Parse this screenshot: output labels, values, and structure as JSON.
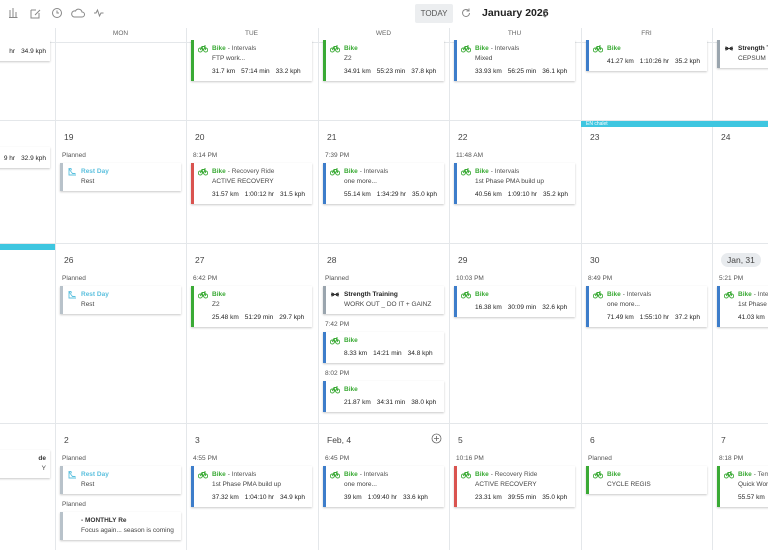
{
  "toolbar": {
    "today": "TODAY",
    "month": "January 2026"
  },
  "weekdays": [
    "MON",
    "TUE",
    "WED",
    "THU",
    "FRI"
  ],
  "banner": "EN chalet",
  "weeks": [
    {
      "days": [
        {
          "items": [
            {
              "card": {
                "stats": [
                  "hr",
                  "34.9 kph"
                ],
                "color": "#9aa5ae"
              }
            }
          ]
        },
        {
          "items": []
        },
        {
          "items": [
            {
              "card": {
                "icon": "bike",
                "title": "Bike",
                "title_color": "#3aaa35",
                "suffix": "- Intervals",
                "desc": "FTP work...",
                "stats": [
                  "31.7 km",
                  "57:14 min",
                  "33.2 kph"
                ],
                "color": "#3aaa35"
              }
            }
          ]
        },
        {
          "items": [
            {
              "card": {
                "icon": "bike",
                "title": "Bike",
                "title_color": "#3aaa35",
                "desc": "Z2",
                "stats": [
                  "34.91 km",
                  "55:23 min",
                  "37.8 kph"
                ],
                "color": "#3aaa35"
              }
            }
          ]
        },
        {
          "items": [
            {
              "card": {
                "icon": "bike",
                "title": "Bike",
                "title_color": "#3aaa35",
                "suffix": "- Intervals",
                "desc": "Mixed",
                "stats": [
                  "33.93 km",
                  "56:25 min",
                  "36.1 kph"
                ],
                "color": "#3d7dca"
              }
            }
          ]
        },
        {
          "items": [
            {
              "card": {
                "icon": "bike",
                "title": "Bike",
                "title_color": "#3aaa35",
                "stats": [
                  "41.27 km",
                  "1:10:26 hr",
                  "35.2 kph"
                ],
                "color": "#3d7dca"
              }
            }
          ]
        },
        {
          "items": [
            {
              "card": {
                "icon": "dumbbell",
                "title": "Strength T",
                "title_color": "#222222",
                "desc": "CEPSUM",
                "color": "#9aa5ae"
              }
            }
          ]
        }
      ]
    },
    {
      "days": [
        {
          "items": [
            {
              "card": {
                "stats": [
                  "9 hr",
                  "32.9 kph"
                ],
                "color": "#9aa5ae"
              }
            }
          ]
        },
        {
          "date": "19",
          "items": [
            {
              "label": "Planned",
              "card": {
                "icon": "rest",
                "title": "Rest Day",
                "title_color": "#5bc0de",
                "desc": "Rest",
                "color": "#b8c2ca"
              }
            }
          ]
        },
        {
          "date": "20",
          "items": [
            {
              "label": "8:14 PM",
              "card": {
                "icon": "bike",
                "title": "Bike",
                "title_color": "#3aaa35",
                "suffix": "- Recovery Ride",
                "desc": "ACTIVE RECOVERY",
                "stats": [
                  "31.57 km",
                  "1:00:12 hr",
                  "31.5 kph"
                ],
                "color": "#d9534f"
              }
            }
          ]
        },
        {
          "date": "21",
          "items": [
            {
              "label": "7:39 PM",
              "card": {
                "icon": "bike",
                "title": "Bike",
                "title_color": "#3aaa35",
                "suffix": "- Intervals",
                "desc": "one more...",
                "stats": [
                  "55.14 km",
                  "1:34:29 hr",
                  "35.0 kph"
                ],
                "color": "#3d7dca"
              }
            }
          ]
        },
        {
          "date": "22",
          "items": [
            {
              "label": "11:48 AM",
              "card": {
                "icon": "bike",
                "title": "Bike",
                "title_color": "#3aaa35",
                "suffix": "- Intervals",
                "desc": "1st Phase PMA build up",
                "stats": [
                  "40.56 km",
                  "1:09:10 hr",
                  "35.2 kph"
                ],
                "color": "#3d7dca"
              }
            }
          ]
        },
        {
          "date": "23",
          "items": []
        },
        {
          "date": "24",
          "items": []
        }
      ]
    },
    {
      "days": [
        {
          "items": []
        },
        {
          "date": "26",
          "items": [
            {
              "label": "Planned",
              "card": {
                "icon": "rest",
                "title": "Rest Day",
                "title_color": "#5bc0de",
                "desc": "Rest",
                "color": "#b8c2ca"
              }
            }
          ]
        },
        {
          "date": "27",
          "items": [
            {
              "label": "6:42 PM",
              "card": {
                "icon": "bike",
                "title": "Bike",
                "title_color": "#3aaa35",
                "desc": "Z2",
                "stats": [
                  "25.48 km",
                  "51:29 min",
                  "29.7 kph"
                ],
                "color": "#3aaa35"
              }
            }
          ]
        },
        {
          "date": "28",
          "items": [
            {
              "label": "Planned",
              "card": {
                "icon": "dumbbell",
                "title": "Strength Training",
                "title_color": "#222222",
                "desc": "WORK OUT _ DO IT + GAINZ",
                "color": "#9aa5ae"
              }
            },
            {
              "label": "7:42 PM",
              "card": {
                "icon": "bike",
                "title": "Bike",
                "title_color": "#3aaa35",
                "stats": [
                  "8.33 km",
                  "14:21 min",
                  "34.8 kph"
                ],
                "color": "#3d7dca"
              }
            },
            {
              "label": "8:02 PM",
              "card": {
                "icon": "bike",
                "title": "Bike",
                "title_color": "#3aaa35",
                "stats": [
                  "21.87 km",
                  "34:31 min",
                  "38.0 kph"
                ],
                "color": "#3d7dca"
              }
            }
          ]
        },
        {
          "date": "29",
          "items": [
            {
              "label": "10:03 PM",
              "card": {
                "icon": "bike",
                "title": "Bike",
                "title_color": "#3aaa35",
                "stats": [
                  "16.38 km",
                  "30:09 min",
                  "32.6 kph"
                ],
                "color": "#3d7dca"
              }
            }
          ]
        },
        {
          "date": "30",
          "items": [
            {
              "label": "8:49 PM",
              "card": {
                "icon": "bike",
                "title": "Bike",
                "title_color": "#3aaa35",
                "suffix": "- Intervals",
                "desc": "one more...",
                "stats": [
                  "71.49 km",
                  "1:55:10 hr",
                  "37.2 kph"
                ],
                "color": "#3d7dca"
              }
            }
          ]
        },
        {
          "date": "Jan, 31",
          "highlight": true,
          "items": [
            {
              "label": "5:21 PM",
              "card": {
                "icon": "bike",
                "title": "Bike",
                "title_color": "#3aaa35",
                "suffix": "- Inter",
                "desc": "1st Phase",
                "stats": [
                  "41.03 km"
                ],
                "color": "#3d7dca"
              }
            }
          ]
        }
      ]
    },
    {
      "days": [
        {
          "items": [
            {
              "card": {
                "title": "de",
                "title_color": "#333333",
                "desc": "Y",
                "color": "#9aa5ae"
              }
            }
          ]
        },
        {
          "date": "2",
          "items": [
            {
              "label": "Planned",
              "card": {
                "icon": "rest",
                "title": "Rest Day",
                "title_color": "#5bc0de",
                "desc": "Rest",
                "color": "#b8c2ca"
              }
            },
            {
              "label": "Planned",
              "card": {
                "title": "- MONTHLY Re",
                "title_color": "#333333",
                "desc": "Focus again... season is coming",
                "color": "#b8c2ca"
              }
            }
          ]
        },
        {
          "date": "3",
          "items": [
            {
              "label": "4:55 PM",
              "card": {
                "icon": "bike",
                "title": "Bike",
                "title_color": "#3aaa35",
                "suffix": "- Intervals",
                "desc": "1st Phase PMA build up",
                "stats": [
                  "37.32 km",
                  "1:04:10 hr",
                  "34.9 kph"
                ],
                "color": "#3d7dca"
              }
            }
          ]
        },
        {
          "date": "Feb, 4",
          "add": true,
          "items": [
            {
              "label": "6:45 PM",
              "card": {
                "icon": "bike",
                "title": "Bike",
                "title_color": "#3aaa35",
                "suffix": "- Intervals",
                "desc": "one more...",
                "stats": [
                  "39 km",
                  "1:09:40 hr",
                  "33.6 kph"
                ],
                "color": "#3d7dca"
              }
            }
          ]
        },
        {
          "date": "5",
          "items": [
            {
              "label": "10:16 PM",
              "card": {
                "icon": "bike",
                "title": "Bike",
                "title_color": "#3aaa35",
                "suffix": "- Recovery Ride",
                "desc": "ACTIVE RECOVERY",
                "stats": [
                  "23.31 km",
                  "39:55 min",
                  "35.0 kph"
                ],
                "color": "#d9534f"
              }
            }
          ]
        },
        {
          "date": "6",
          "items": [
            {
              "label": "Planned",
              "card": {
                "icon": "bike",
                "title": "Bike",
                "title_color": "#3aaa35",
                "desc": "CYCLE REGIS",
                "color": "#3aaa35"
              }
            }
          ]
        },
        {
          "date": "7",
          "items": [
            {
              "label": "8:18 PM",
              "card": {
                "icon": "bike",
                "title": "Bike",
                "title_color": "#3aaa35",
                "suffix": "- Tem",
                "desc": "Quick Wor",
                "stats": [
                  "55.57 km"
                ],
                "color": "#3aaa35"
              }
            }
          ]
        }
      ]
    }
  ]
}
